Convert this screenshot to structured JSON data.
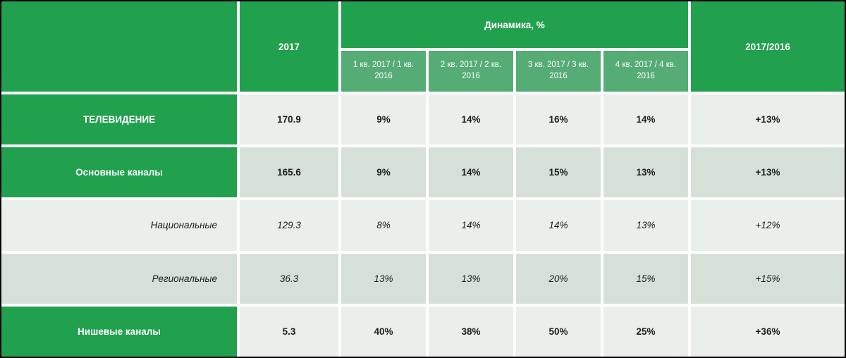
{
  "header": {
    "year": "2017",
    "dynamics_title": "Динамика, %",
    "sub": [
      "1 кв. 2017 / 1 кв. 2016",
      "2 кв. 2017 / 2 кв. 2016",
      "3 кв. 2017 / 3 кв. 2016",
      "4 кв. 2017 / 4 кв. 2016"
    ],
    "yoy": "2017/2016"
  },
  "rows": [
    {
      "label": "ТЕЛЕВИДЕНИЕ",
      "year": "170.9",
      "q1": "9%",
      "q2": "14%",
      "q3": "16%",
      "q4": "14%",
      "yoy": "+13%"
    },
    {
      "label": "Основные каналы",
      "year": "165.6",
      "q1": "9%",
      "q2": "14%",
      "q3": "15%",
      "q4": "13%",
      "yoy": "+13%"
    },
    {
      "label": "Национальные",
      "year": "129.3",
      "q1": "8%",
      "q2": "14%",
      "q3": "14%",
      "q4": "13%",
      "yoy": "+12%"
    },
    {
      "label": "Региональные",
      "year": "36.3",
      "q1": "13%",
      "q2": "13%",
      "q3": "20%",
      "q4": "15%",
      "yoy": "+15%"
    },
    {
      "label": "Нишевые каналы",
      "year": "5.3",
      "q1": "40%",
      "q2": "38%",
      "q3": "50%",
      "q4": "25%",
      "yoy": "+36%"
    }
  ],
  "colors": {
    "header_green": "#21A14E",
    "subheader_green": "#56AC75",
    "row_light": "#E9EFEA",
    "row_dark": "#D5E1D7",
    "grid_gap": "#FFFFFF",
    "text_dark": "#1D1D1D"
  },
  "chart_data": {
    "type": "table",
    "title": "Динамика, %",
    "column_group": {
      "label": "Динамика, %",
      "spans": [
        "1 кв. 2017 / 1 кв. 2016",
        "2 кв. 2017 / 2 кв. 2016",
        "3 кв. 2017 / 3 кв. 2016",
        "4 кв. 2017 / 4 кв. 2016"
      ]
    },
    "columns": [
      "",
      "2017",
      "1 кв. 2017 / 1 кв. 2016",
      "2 кв. 2017 / 2 кв. 2016",
      "3 кв. 2017 / 3 кв. 2016",
      "4 кв. 2017 / 4 кв. 2016",
      "2017/2016"
    ],
    "rows": [
      [
        "ТЕЛЕВИДЕНИЕ",
        "170.9",
        "9%",
        "14%",
        "16%",
        "14%",
        "+13%"
      ],
      [
        "Основные каналы",
        "165.6",
        "9%",
        "14%",
        "15%",
        "13%",
        "+13%"
      ],
      [
        "Национальные",
        "129.3",
        "8%",
        "14%",
        "14%",
        "13%",
        "+12%"
      ],
      [
        "Региональные",
        "36.3",
        "13%",
        "13%",
        "20%",
        "15%",
        "+15%"
      ],
      [
        "Нишевые каналы",
        "5.3",
        "40%",
        "38%",
        "50%",
        "25%",
        "+36%"
      ]
    ]
  }
}
